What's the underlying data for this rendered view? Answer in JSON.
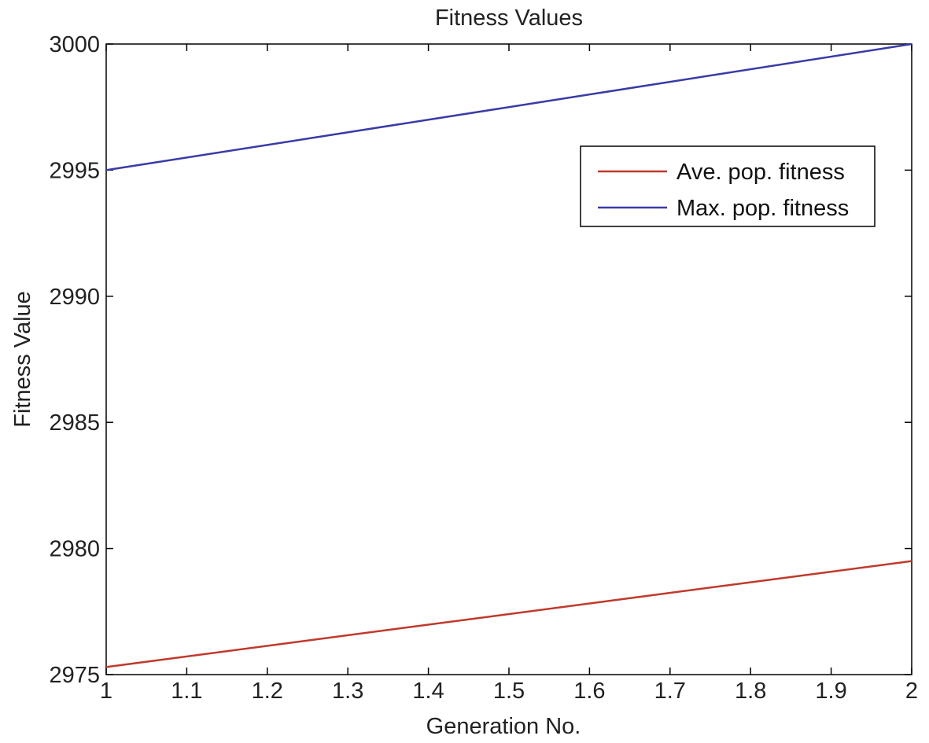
{
  "chart_data": {
    "type": "line",
    "title": "Fitness Values",
    "xlabel": "Generation No.",
    "ylabel": "Fitness Value",
    "xlim": [
      1,
      2
    ],
    "ylim": [
      2975,
      3000
    ],
    "x_ticks": [
      1,
      1.1,
      1.2,
      1.3,
      1.4,
      1.5,
      1.6,
      1.7,
      1.8,
      1.9,
      2
    ],
    "x_tick_labels": [
      "1",
      "1.1",
      "1.2",
      "1.3",
      "1.4",
      "1.5",
      "1.6",
      "1.7",
      "1.8",
      "1.9",
      "2"
    ],
    "y_ticks": [
      2975,
      2980,
      2985,
      2990,
      2995,
      3000
    ],
    "y_tick_labels": [
      "2975",
      "2980",
      "2985",
      "2990",
      "2995",
      "3000"
    ],
    "grid": false,
    "legend_position": "top-right",
    "series": [
      {
        "name": "Ave. pop. fitness",
        "color": "#c0392b",
        "x": [
          1,
          2
        ],
        "y": [
          2975.3,
          2979.5
        ]
      },
      {
        "name": "Max. pop. fitness",
        "color": "#3a3aa8",
        "x": [
          1,
          2
        ],
        "y": [
          2995,
          3000
        ]
      }
    ]
  }
}
